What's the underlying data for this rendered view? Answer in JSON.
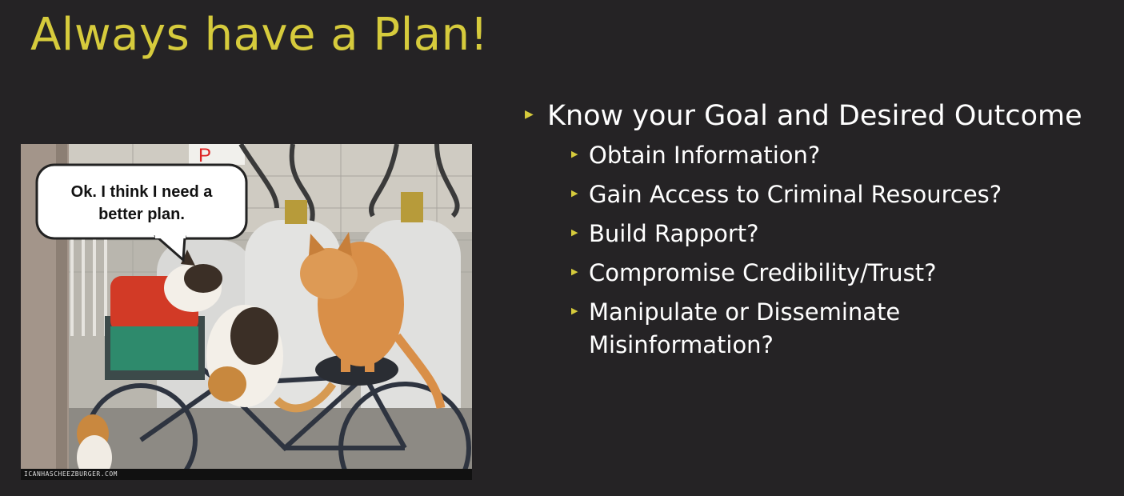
{
  "slide": {
    "title": "Always have a Plan!",
    "title_color": "#D6CB3C",
    "text_color": "#FFFFFF",
    "bullet_color": "#D6CB3C",
    "background": "#252325"
  },
  "image": {
    "caption": "Ok. I think I need a better plan.",
    "caption_line1": "Ok. I think I need a",
    "caption_line2": "better plan.",
    "watermark": "ICANHASCHEEZBURGER.COM",
    "sign_text": "P"
  },
  "bullets": {
    "main": "Know your Goal and Desired Outcome",
    "sub": [
      "Obtain Information?",
      "Gain Access to Criminal Resources?",
      "Build Rapport?",
      "Compromise Credibility/Trust?",
      "Manipulate or Disseminate Misinformation?"
    ],
    "marker": "▶"
  }
}
